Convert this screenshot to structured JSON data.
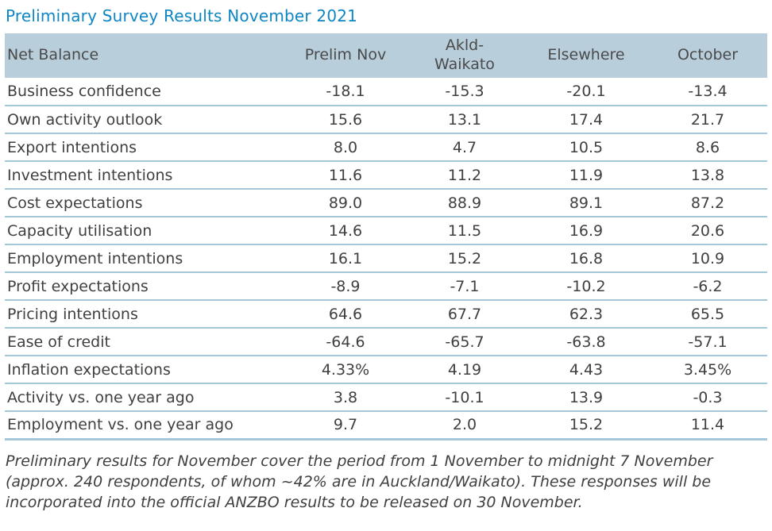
{
  "colors": {
    "title": "#0e86c4",
    "header_bg": "#b9cedb",
    "divider": "#a4c6d9",
    "text": "#3f3f3f",
    "header_text": "#4a4a4a"
  },
  "chart_data": {
    "type": "table",
    "title": "Preliminary Survey Results November 2021",
    "columns": [
      "Net Balance",
      "Prelim Nov",
      "Akld-Waikato",
      "Elsewhere",
      "October"
    ],
    "rows": [
      {
        "label": "Business confidence",
        "values": [
          "-18.1",
          "-15.3",
          "-20.1",
          "-13.4"
        ]
      },
      {
        "label": "Own activity outlook",
        "values": [
          "15.6",
          "13.1",
          "17.4",
          "21.7"
        ]
      },
      {
        "label": "Export intentions",
        "values": [
          "8.0",
          "4.7",
          "10.5",
          "8.6"
        ]
      },
      {
        "label": "Investment intentions",
        "values": [
          "11.6",
          "11.2",
          "11.9",
          "13.8"
        ]
      },
      {
        "label": "Cost expectations",
        "values": [
          "89.0",
          "88.9",
          "89.1",
          "87.2"
        ]
      },
      {
        "label": "Capacity utilisation",
        "values": [
          "14.6",
          "11.5",
          "16.9",
          "20.6"
        ]
      },
      {
        "label": "Employment intentions",
        "values": [
          "16.1",
          "15.2",
          "16.8",
          "10.9"
        ]
      },
      {
        "label": "Profit expectations",
        "values": [
          "-8.9",
          "-7.1",
          "-10.2",
          "-6.2"
        ]
      },
      {
        "label": "Pricing intentions",
        "values": [
          "64.6",
          "67.7",
          "62.3",
          "65.5"
        ]
      },
      {
        "label": "Ease of credit",
        "values": [
          "-64.6",
          "-65.7",
          "-63.8",
          "-57.1"
        ]
      },
      {
        "label": "Inflation expectations",
        "values": [
          "4.33%",
          "4.19",
          "4.43",
          "3.45%"
        ]
      },
      {
        "label": "Activity vs. one year ago",
        "values": [
          "3.8",
          "-10.1",
          "13.9",
          "-0.3"
        ]
      },
      {
        "label": "Employment vs. one year ago",
        "values": [
          "9.7",
          "2.0",
          "15.2",
          "11.4"
        ]
      }
    ],
    "footnote": "Preliminary results for November cover the period from 1 November to midnight 7 November (approx. 240 respondents, of whom ~42% are in Auckland/Waikato). These responses will be incorporated into the official ANZBO results to be released on 30 November."
  }
}
